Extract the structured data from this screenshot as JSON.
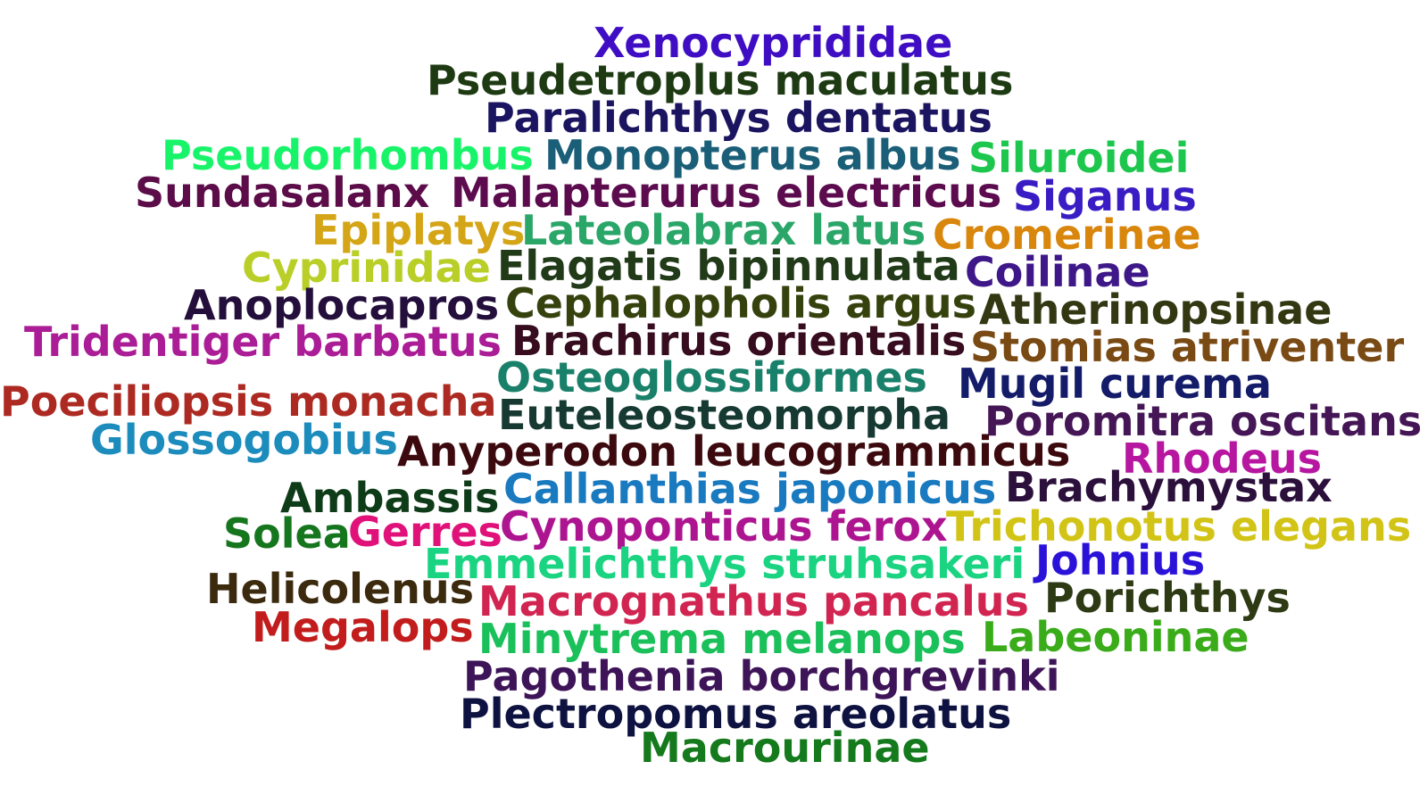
{
  "words": [
    {
      "text": "Xenocyprididae",
      "color": "#3f0ec4"
    },
    {
      "text": "Pseudetroplus maculatus",
      "color": "#1d3a12"
    },
    {
      "text": "Paralichthys dentatus",
      "color": "#1b1460"
    },
    {
      "text": "Pseudorhombus",
      "color": "#18f46a"
    },
    {
      "text": "Monopterus albus",
      "color": "#1a5e78"
    },
    {
      "text": "Siluroidei",
      "color": "#1dc74e"
    },
    {
      "text": "Sundasalanx",
      "color": "#5c0c48"
    },
    {
      "text": "Malapterurus electricus",
      "color": "#5c0c4e"
    },
    {
      "text": "Siganus",
      "color": "#3a1cc4"
    },
    {
      "text": "Epiplatys",
      "color": "#d4a516"
    },
    {
      "text": "Lateolabrax latus",
      "color": "#2aa668"
    },
    {
      "text": "Cromerinae",
      "color": "#d9860d"
    },
    {
      "text": "Cyprinidae",
      "color": "#b9cf28"
    },
    {
      "text": "Elagatis bipinnulata",
      "color": "#213a18"
    },
    {
      "text": "Coilinae",
      "color": "#3e1788"
    },
    {
      "text": "Anoplocapros",
      "color": "#240f3c"
    },
    {
      "text": "Cephalopholis argus",
      "color": "#36420e"
    },
    {
      "text": "Atherinopsinae",
      "color": "#333813"
    },
    {
      "text": "Tridentiger barbatus",
      "color": "#ab1d96"
    },
    {
      "text": "Brachirus orientalis",
      "color": "#360c1e"
    },
    {
      "text": "Stomias atriventer",
      "color": "#7a4a14"
    },
    {
      "text": "Osteoglossiformes",
      "color": "#19806a"
    },
    {
      "text": "Mugil curema",
      "color": "#141c6a"
    },
    {
      "text": "Poeciliopsis monacha",
      "color": "#ad2a22"
    },
    {
      "text": "Euteleosteomorpha",
      "color": "#163a32"
    },
    {
      "text": "Poromitra oscitans",
      "color": "#451656"
    },
    {
      "text": "Glossogobius",
      "color": "#1c8cbd"
    },
    {
      "text": "Anyperodon leucogrammicus",
      "color": "#3c0a0e"
    },
    {
      "text": "Rhodeus",
      "color": "#b716a0"
    },
    {
      "text": "Ambassis",
      "color": "#0e3c18"
    },
    {
      "text": "Callanthias japonicus",
      "color": "#1a7ac0"
    },
    {
      "text": "Brachymystax",
      "color": "#2c103c"
    },
    {
      "text": "Solea",
      "color": "#16761e"
    },
    {
      "text": "Gerres",
      "color": "#e0127a"
    },
    {
      "text": "Cynoponticus ferox",
      "color": "#ad1490"
    },
    {
      "text": "Trichonotus elegans",
      "color": "#d2c416"
    },
    {
      "text": "Emmelichthys struhsakeri",
      "color": "#1ad482"
    },
    {
      "text": "Johnius",
      "color": "#2a12d8"
    },
    {
      "text": "Helicolenus",
      "color": "#3c2a0e"
    },
    {
      "text": "Macrognathus pancalus",
      "color": "#d12450"
    },
    {
      "text": "Porichthys",
      "color": "#2e3a14"
    },
    {
      "text": "Megalops",
      "color": "#c21c1c"
    },
    {
      "text": "Minytrema melanops",
      "color": "#1ac05a"
    },
    {
      "text": "Labeoninae",
      "color": "#3aac1a"
    },
    {
      "text": "Pagothenia borchgrevinki",
      "color": "#3e1458"
    },
    {
      "text": "Plectropomus areolatus",
      "color": "#0e1240"
    },
    {
      "text": "Macrourinae",
      "color": "#147a1c"
    }
  ]
}
